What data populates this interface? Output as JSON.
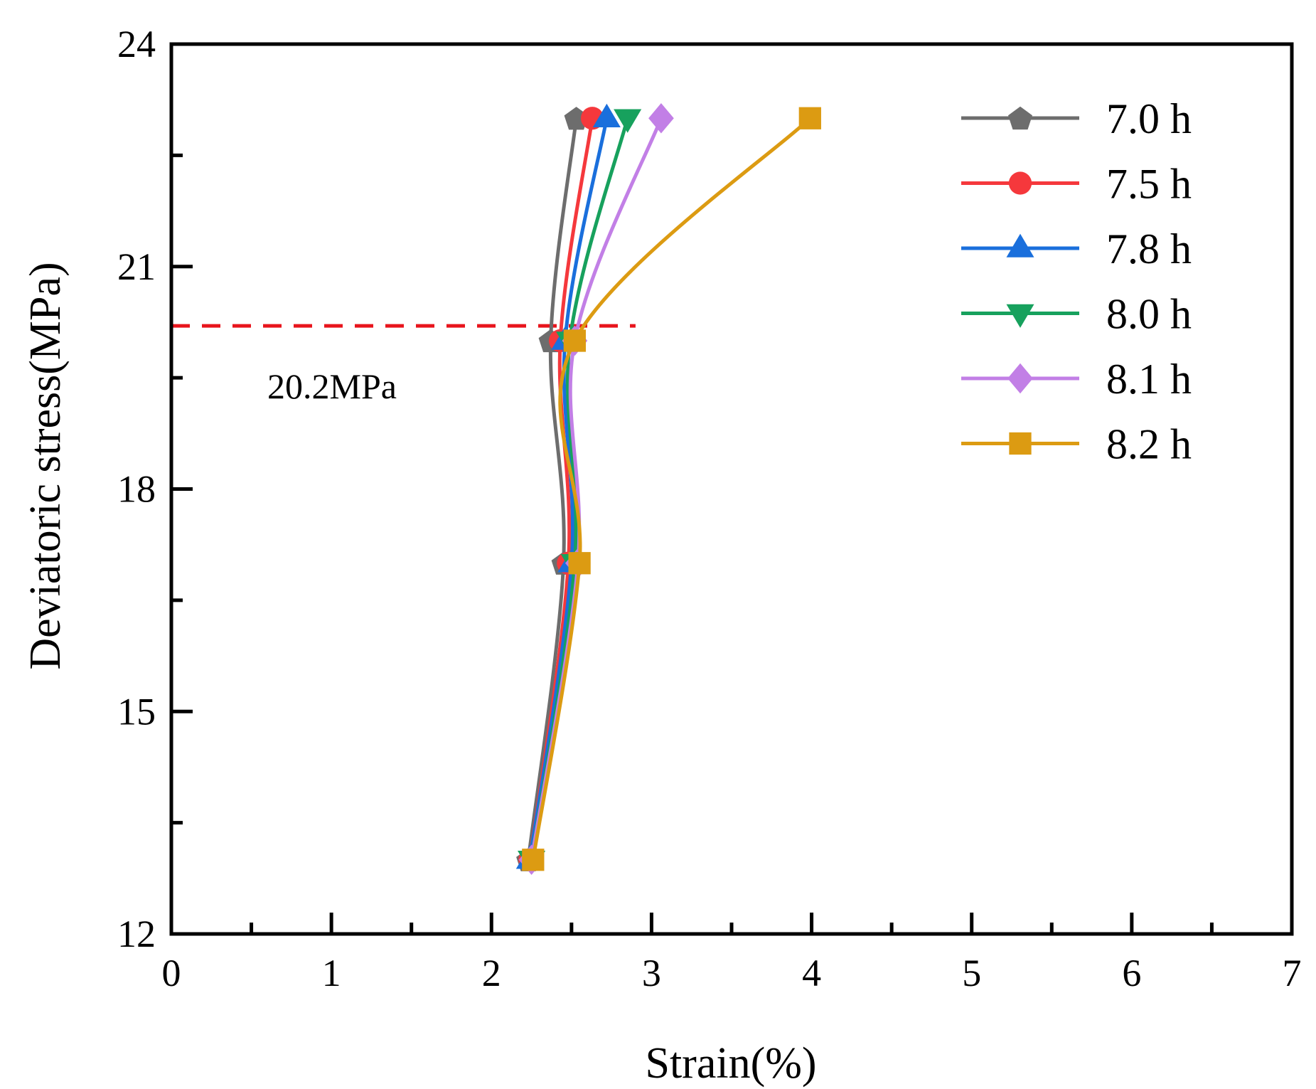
{
  "chart_data": {
    "type": "line",
    "title": "",
    "xlabel": "Strain(%)",
    "ylabel": "Deviatoric stress(MPa)",
    "xlim": [
      0,
      7
    ],
    "ylim": [
      12,
      24
    ],
    "x_major_ticks": [
      0,
      1,
      2,
      3,
      4,
      5,
      6,
      7
    ],
    "x_tick_labels": [
      "0",
      "1",
      "2",
      "3",
      "4",
      "5",
      "6",
      "7"
    ],
    "x_minor_ticks": [
      0.5,
      1.5,
      2.5,
      3.5,
      4.5,
      5.5,
      6.5
    ],
    "y_major_ticks": [
      12,
      15,
      18,
      21,
      24
    ],
    "y_tick_labels": [
      "12",
      "15",
      "18",
      "21",
      "24"
    ],
    "y_minor_ticks": [
      13.5,
      16.5,
      19.5,
      22.5
    ],
    "grid": false,
    "legend_position": "top-right",
    "threshold": {
      "y": 20.2,
      "x_range": [
        0,
        2.9
      ],
      "color": "#e8141c",
      "label": "20.2MPa"
    },
    "series": [
      {
        "name": "7.0 h",
        "color": "#6d6d6d",
        "marker": "pentagon",
        "points": [
          [
            2.23,
            13.0
          ],
          [
            2.45,
            17.0
          ],
          [
            2.37,
            20.0
          ],
          [
            2.53,
            23.0
          ]
        ]
      },
      {
        "name": "7.5 h",
        "color": "#f5383c",
        "marker": "circle",
        "points": [
          [
            2.24,
            13.0
          ],
          [
            2.48,
            17.0
          ],
          [
            2.43,
            20.0
          ],
          [
            2.63,
            23.0
          ]
        ]
      },
      {
        "name": "7.8 h",
        "color": "#1a6fdc",
        "marker": "triangle-up",
        "points": [
          [
            2.24,
            13.0
          ],
          [
            2.5,
            17.0
          ],
          [
            2.46,
            20.0
          ],
          [
            2.72,
            23.0
          ]
        ]
      },
      {
        "name": "8.0 h",
        "color": "#17a15d",
        "marker": "triangle-down",
        "points": [
          [
            2.25,
            13.0
          ],
          [
            2.52,
            17.0
          ],
          [
            2.49,
            20.0
          ],
          [
            2.85,
            23.0
          ]
        ]
      },
      {
        "name": "8.1 h",
        "color": "#c27fe6",
        "marker": "diamond",
        "points": [
          [
            2.25,
            13.0
          ],
          [
            2.54,
            17.0
          ],
          [
            2.52,
            20.0
          ],
          [
            3.06,
            23.0
          ]
        ]
      },
      {
        "name": "8.2 h",
        "color": "#dc9b12",
        "marker": "square",
        "points": [
          [
            2.26,
            13.0
          ],
          [
            2.55,
            17.0
          ],
          [
            2.52,
            20.0
          ],
          [
            3.99,
            23.0
          ]
        ]
      }
    ]
  }
}
